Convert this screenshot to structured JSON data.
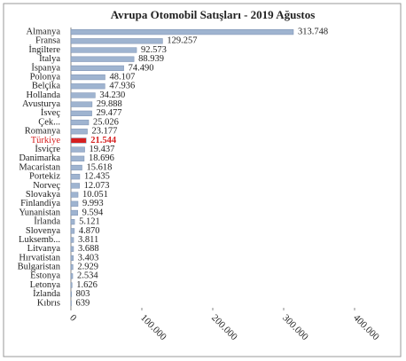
{
  "chart_data": {
    "type": "bar",
    "orientation": "horizontal",
    "title": "Avrupa  Otomobil  Satışları  - 2019  Ağustos",
    "categories": [
      "Almanya",
      "Fransa",
      "İngiltere",
      "İtalya",
      "İspanya",
      "Polonya",
      "Belçika",
      "Hollanda",
      "Avusturya",
      "İsveç",
      "Çek...",
      "Romanya",
      "Türkiye",
      "İsviçre",
      "Danimarka",
      "Macaristan",
      "Portekiz",
      "Norveç",
      "Slovakya",
      "Finlandiya",
      "Yunanistan",
      "İrlanda",
      "Slovenya",
      "Luksemb...",
      "Litvanya",
      "Hırvatistan",
      "Bulgaristan",
      "Estonya",
      "Letonya",
      "İzlanda",
      "Kıbrıs"
    ],
    "values": [
      313748,
      129257,
      92573,
      88939,
      74490,
      48107,
      47936,
      34230,
      29888,
      29477,
      25026,
      23177,
      21544,
      19437,
      18696,
      15618,
      12435,
      12073,
      10051,
      9993,
      9594,
      5121,
      4870,
      3811,
      3688,
      3403,
      2929,
      2534,
      1626,
      803,
      639
    ],
    "value_labels": [
      "313.748",
      "129.257",
      "92.573",
      "88.939",
      "74.490",
      "48.107",
      "47.936",
      "34.230",
      "29.888",
      "29.477",
      "25.026",
      "23.177",
      "21.544",
      "19.437",
      "18.696",
      "15.618",
      "12.435",
      "12.073",
      "10.051",
      "9.993",
      "9.594",
      "5.121",
      "4.870",
      "3.811",
      "3.688",
      "3.403",
      "2.929",
      "2.534",
      "1.626",
      "803",
      "639"
    ],
    "colors": [
      "#9fb4d0",
      "#9fb4d0",
      "#9fb4d0",
      "#9fb4d0",
      "#9fb4d0",
      "#9fb4d0",
      "#9fb4d0",
      "#9fb4d0",
      "#9fb4d0",
      "#9fb4d0",
      "#9fb4d0",
      "#9fb4d0",
      "#d62020",
      "#9fb4d0",
      "#9fb4d0",
      "#9fb4d0",
      "#9fb4d0",
      "#9fb4d0",
      "#9fb4d0",
      "#9fb4d0",
      "#9fb4d0",
      "#9fb4d0",
      "#9fb4d0",
      "#9fb4d0",
      "#9fb4d0",
      "#9fb4d0",
      "#9fb4d0",
      "#9fb4d0",
      "#9fb4d0",
      "#9fb4d0",
      "#9fb4d0"
    ],
    "xlim": [
      0,
      400000
    ],
    "xticks": [
      0,
      {
        "value": 100000,
        "label": "100.000"
      },
      {
        "value": 200000,
        "label": "200.000"
      },
      {
        "value": 300000,
        "label": "300.000"
      },
      {
        "value": 400000,
        "label": "400.000"
      }
    ]
  }
}
